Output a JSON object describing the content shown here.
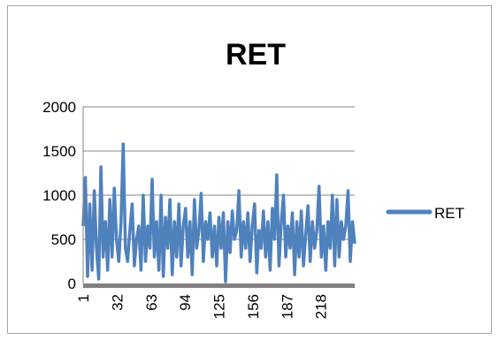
{
  "chart_data": {
    "type": "line",
    "title": "RET",
    "xlabel": "",
    "ylabel": "",
    "ylim": [
      0,
      2000
    ],
    "yticks": [
      "0",
      "500",
      "1000",
      "1500",
      "2000"
    ],
    "xticks": [
      "1",
      "32",
      "63",
      "94",
      "125",
      "156",
      "187",
      "218"
    ],
    "x_start": 1,
    "x_end": 249,
    "grid": "horizontal",
    "legend_position": "right",
    "series": [
      {
        "name": "RET",
        "color": "#4f81bd",
        "values": [
          650,
          1200,
          80,
          900,
          150,
          1050,
          400,
          50,
          1320,
          300,
          700,
          150,
          950,
          300,
          1080,
          500,
          250,
          700,
          1580,
          400,
          250,
          600,
          900,
          200,
          500,
          650,
          150,
          1000,
          250,
          650,
          400,
          1180,
          300,
          700,
          150,
          1000,
          80,
          750,
          400,
          950,
          100,
          700,
          300,
          900,
          200,
          650,
          850,
          300,
          700,
          100,
          950,
          400,
          600,
          1020,
          250,
          700,
          500,
          800,
          300,
          650,
          200,
          750,
          400,
          800,
          20,
          700,
          350,
          820,
          500,
          600,
          1050,
          300,
          700,
          400,
          800,
          250,
          650,
          900,
          120,
          600,
          400,
          820,
          300,
          700,
          150,
          850,
          500,
          1230,
          200,
          700,
          1000,
          300,
          650,
          400,
          800,
          100,
          700,
          300,
          820,
          200,
          550,
          880,
          250,
          700,
          400,
          600,
          1100,
          300,
          650,
          150,
          700,
          400,
          1000,
          200,
          950,
          300,
          700,
          500,
          650,
          1050,
          250,
          700,
          450
        ]
      }
    ]
  }
}
